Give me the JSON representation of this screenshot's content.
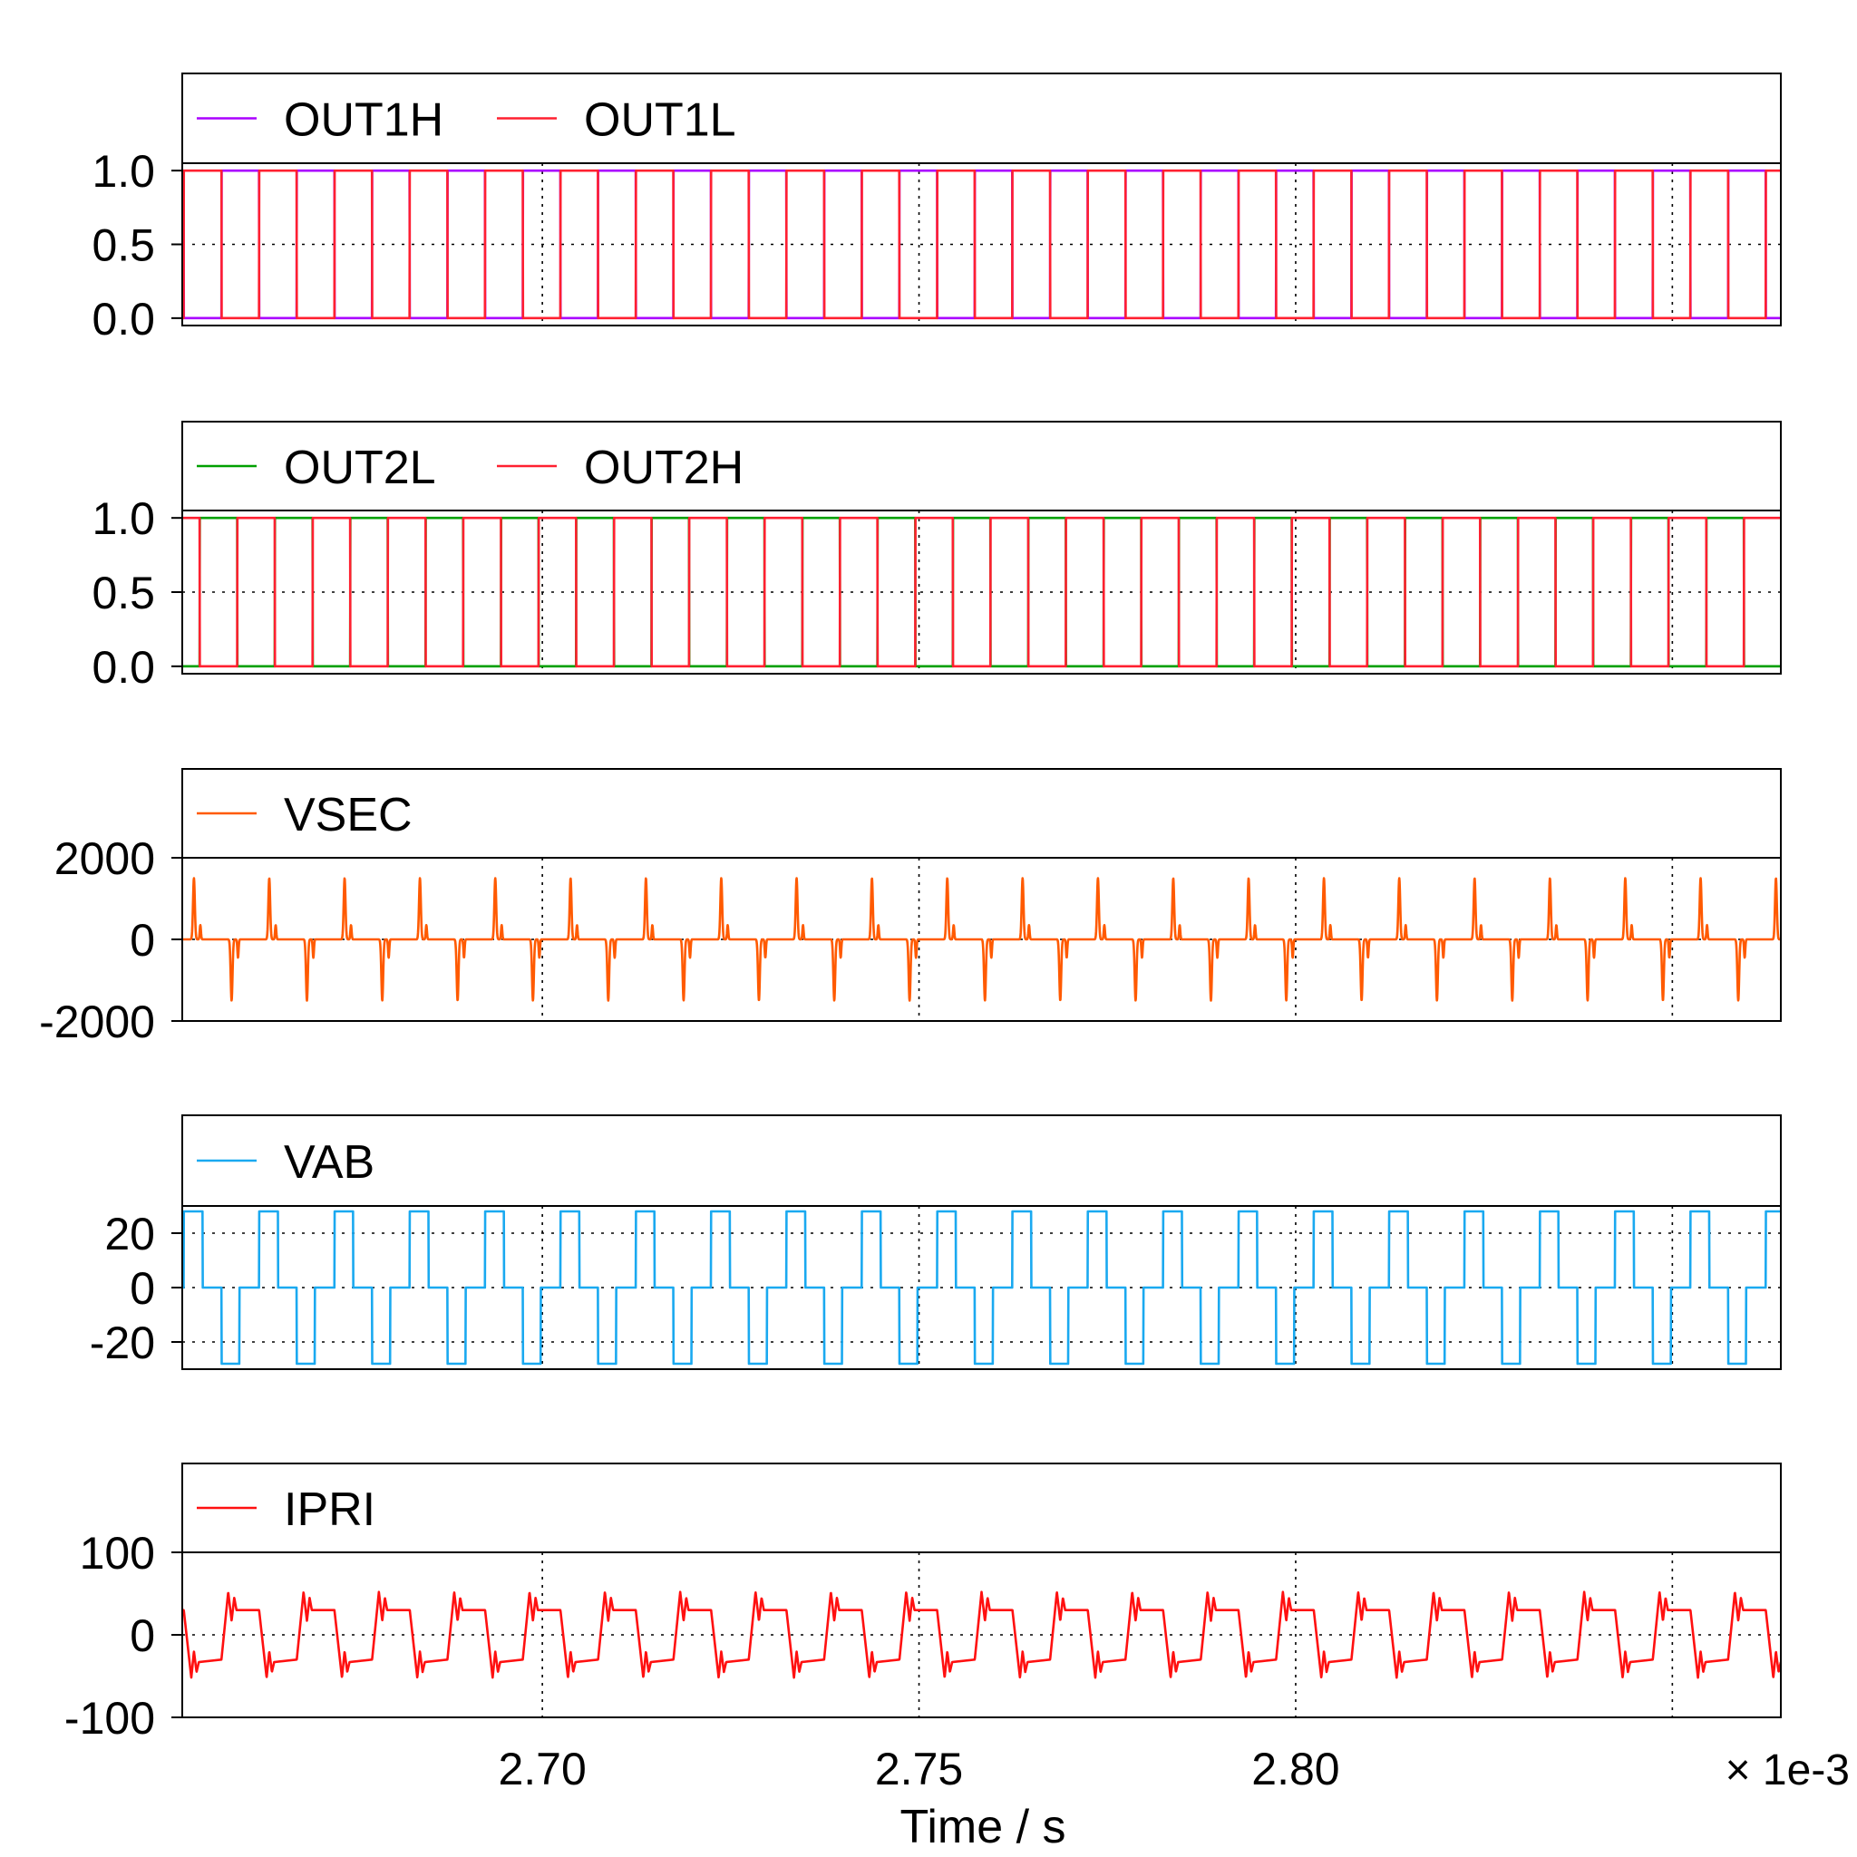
{
  "chart_data": {
    "type": "line",
    "xaxis": {
      "xlim": [
        2.6522,
        2.8644
      ],
      "xticks": [
        2.7,
        2.75,
        2.8,
        2.85
      ],
      "xtick_labels": [
        "2.70",
        "2.75",
        "2.80",
        ""
      ],
      "xlabel": "Time / s",
      "multiplier": "× 1e-3",
      "period": 0.01,
      "phase0_time": 2.6524
    },
    "charts": [
      {
        "ylim": [
          -0.05,
          1.05
        ],
        "yticks": [
          0.0,
          0.5,
          1.0
        ],
        "ytick_labels": [
          "0.0",
          "0.5",
          "1.0"
        ],
        "series": [
          {
            "name": "OUT1H",
            "color": "#aa00ff",
            "kind": "digital",
            "high": [
              [
                0.5,
                1.0
              ]
            ]
          },
          {
            "name": "OUT1L",
            "color": "#ff2030",
            "kind": "digital",
            "high": [
              [
                0.0,
                0.5
              ]
            ]
          }
        ]
      },
      {
        "ylim": [
          -0.05,
          1.05
        ],
        "yticks": [
          0.0,
          0.5,
          1.0
        ],
        "ytick_labels": [
          "0.0",
          "0.5",
          "1.0"
        ],
        "series": [
          {
            "name": "OUT2L",
            "color": "#00a000",
            "kind": "digital",
            "high": [
              [
                0.21,
                0.71
              ]
            ]
          },
          {
            "name": "OUT2H",
            "color": "#ff2030",
            "kind": "digital",
            "high": [
              [
                0.0,
                0.21
              ],
              [
                0.71,
                1.0
              ]
            ]
          }
        ]
      },
      {
        "ylim": [
          -2000,
          2000
        ],
        "yticks": [
          -2000,
          0,
          2000
        ],
        "ytick_labels": [
          "-2000",
          "0",
          "2000"
        ],
        "series": [
          {
            "name": "VSEC",
            "color": "#ff5a00",
            "kind": "pulses",
            "pulses": [
              [
                0.135,
                0.012,
                1500
              ],
              [
                0.22,
                0.008,
                350
              ],
              [
                0.635,
                0.012,
                -1500
              ],
              [
                0.72,
                0.008,
                -450
              ]
            ]
          }
        ]
      },
      {
        "ylim": [
          -30,
          30
        ],
        "yticks": [
          -20,
          0,
          20
        ],
        "ytick_labels": [
          "-20",
          "0",
          "20"
        ],
        "series": [
          {
            "name": "VAB",
            "color": "#1aa9f0",
            "kind": "levels",
            "levels": [
              [
                0.0,
                0.25,
                28
              ],
              [
                0.25,
                0.5,
                0
              ],
              [
                0.5,
                0.74,
                -28
              ],
              [
                0.74,
                1.0,
                0
              ]
            ]
          }
        ]
      },
      {
        "ylim": [
          -100,
          100
        ],
        "yticks": [
          -100,
          0,
          100
        ],
        "ytick_labels": [
          "-100",
          "0",
          "100"
        ],
        "series": [
          {
            "name": "IPRI",
            "color": "#ff1010",
            "kind": "piecewise",
            "points": [
              [
                0.0,
                30
              ],
              [
                0.1,
                -52
              ],
              [
                0.135,
                -20
              ],
              [
                0.17,
                -45
              ],
              [
                0.2,
                -33
              ],
              [
                0.5,
                -30
              ],
              [
                0.59,
                52
              ],
              [
                0.635,
                17
              ],
              [
                0.67,
                45
              ],
              [
                0.7,
                30
              ],
              [
                1.0,
                30
              ]
            ]
          }
        ]
      }
    ]
  }
}
